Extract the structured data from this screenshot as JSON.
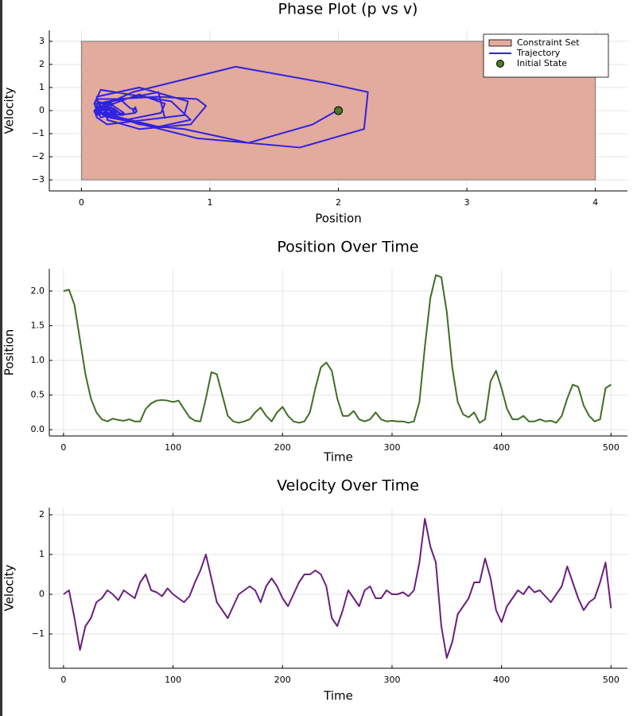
{
  "chart_data": [
    {
      "type": "line",
      "title": "Phase Plot (p vs v)",
      "xlabel": "Position",
      "ylabel": "Velocity",
      "xlim": [
        -0.25,
        4.25
      ],
      "ylim": [
        -3.48,
        3.48
      ],
      "xticks": [
        0,
        1,
        2,
        3,
        4
      ],
      "yticks": [
        {
          "value": -3,
          "label": "−3"
        },
        {
          "value": -2,
          "label": "−2"
        },
        {
          "value": -1,
          "label": "−1"
        },
        0,
        1,
        2,
        3
      ],
      "grid": true,
      "legend": "top-right",
      "series": [
        {
          "name": "Constraint Set",
          "kind": "rect",
          "color": "#e3aa9e",
          "x": [
            0,
            4
          ],
          "values": [
            -3,
            3
          ]
        },
        {
          "name": "Trajectory",
          "kind": "line",
          "color": "#2f22e0",
          "x": [
            2.0,
            2.02,
            1.8,
            1.3,
            0.8,
            0.45,
            0.25,
            0.15,
            0.12,
            0.16,
            0.14,
            0.13,
            0.15,
            0.12,
            0.12,
            0.3,
            0.38,
            0.42,
            0.43,
            0.42,
            0.4,
            0.42,
            0.3,
            0.18,
            0.13,
            0.12,
            0.45,
            0.83,
            0.8,
            0.5,
            0.2,
            0.12,
            0.1,
            0.12,
            0.15,
            0.25,
            0.32,
            0.2,
            0.12,
            0.25,
            0.33,
            0.2,
            0.12,
            0.1,
            0.12,
            0.25,
            0.6,
            0.9,
            0.97,
            0.85,
            0.45,
            0.2,
            0.2,
            0.27,
            0.15,
            0.12,
            0.15,
            0.25,
            0.15,
            0.12,
            0.13,
            0.12,
            0.12,
            0.1,
            0.12,
            0.4,
            1.2,
            1.9,
            2.23,
            2.2,
            1.7,
            0.9,
            0.4,
            0.22,
            0.18,
            0.25,
            0.1,
            0.15,
            0.7,
            0.85,
            0.6,
            0.3,
            0.15,
            0.15,
            0.2,
            0.12,
            0.12,
            0.15,
            0.12,
            0.13,
            0.1,
            0.2,
            0.45,
            0.65,
            0.62,
            0.35,
            0.2,
            0.12,
            0.15,
            0.6,
            0.65
          ],
          "values": [
            0,
            0.1,
            -0.6,
            -1.4,
            -0.8,
            -0.6,
            -0.2,
            -0.1,
            0.1,
            0,
            -0.15,
            0.1,
            0,
            -0.1,
            0.3,
            0.5,
            0.1,
            0.05,
            -0.05,
            0.15,
            0,
            -0.1,
            -0.2,
            -0.05,
            0.3,
            0.6,
            1.0,
            0.4,
            -0.2,
            -0.4,
            -0.6,
            -0.3,
            0,
            0.1,
            0.2,
            0.1,
            -0.2,
            0.2,
            0.4,
            0.2,
            -0.1,
            -0.3,
            0,
            0.3,
            0.5,
            0.5,
            0.6,
            0.5,
            0.2,
            -0.6,
            -0.8,
            -0.4,
            0.1,
            -0.1,
            -0.3,
            0.1,
            0.2,
            -0.1,
            -0.1,
            0.1,
            0,
            0,
            0.05,
            -0.05,
            0.1,
            0.8,
            1.9,
            1.2,
            0.8,
            -0.8,
            -1.6,
            -1.2,
            -0.5,
            -0.3,
            -0.1,
            0.3,
            0.3,
            0.9,
            0.4,
            -0.4,
            -0.7,
            -0.3,
            -0.1,
            0.1,
            0,
            0.2,
            0.05,
            0.1,
            -0.05,
            -0.2,
            0,
            0.2,
            0.7,
            0.3,
            -0.1,
            -0.4,
            -0.2,
            -0.1,
            0.3,
            0.8,
            -0.35
          ]
        },
        {
          "name": "Initial State",
          "kind": "scatter",
          "color": "#4a7a2a",
          "x": [
            2
          ],
          "values": [
            0
          ]
        }
      ]
    },
    {
      "type": "line",
      "title": "Position Over Time",
      "xlabel": "Time",
      "ylabel": "Position",
      "xlim": [
        -13,
        515
      ],
      "ylim": [
        -0.09,
        2.32
      ],
      "xticks": [
        0,
        100,
        200,
        300,
        400,
        500
      ],
      "yticks": [
        {
          "value": 0,
          "label": "0.0"
        },
        {
          "value": 0.5,
          "label": "0.5"
        },
        {
          "value": 1,
          "label": "1.0"
        },
        {
          "value": 1.5,
          "label": "1.5"
        },
        {
          "value": 2,
          "label": "2.0"
        }
      ],
      "grid": true,
      "x": [
        0,
        5,
        10,
        15,
        20,
        25,
        30,
        35,
        40,
        45,
        50,
        55,
        60,
        65,
        70,
        75,
        80,
        85,
        90,
        95,
        100,
        105,
        110,
        115,
        120,
        125,
        130,
        135,
        140,
        145,
        150,
        155,
        160,
        165,
        170,
        175,
        180,
        185,
        190,
        195,
        200,
        205,
        210,
        215,
        220,
        225,
        230,
        235,
        240,
        245,
        250,
        255,
        260,
        265,
        270,
        275,
        280,
        285,
        290,
        295,
        300,
        305,
        310,
        315,
        320,
        325,
        330,
        335,
        340,
        345,
        350,
        355,
        360,
        365,
        370,
        375,
        380,
        385,
        390,
        395,
        400,
        405,
        410,
        415,
        420,
        425,
        430,
        435,
        440,
        445,
        450,
        455,
        460,
        465,
        470,
        475,
        480,
        485,
        490,
        495,
        500
      ],
      "series": [
        {
          "kind": "line",
          "color": "#3f6e23",
          "values": [
            2.0,
            2.02,
            1.8,
            1.3,
            0.8,
            0.45,
            0.25,
            0.15,
            0.12,
            0.16,
            0.14,
            0.13,
            0.15,
            0.12,
            0.12,
            0.3,
            0.38,
            0.42,
            0.43,
            0.42,
            0.4,
            0.42,
            0.3,
            0.18,
            0.13,
            0.12,
            0.45,
            0.83,
            0.8,
            0.5,
            0.2,
            0.12,
            0.1,
            0.12,
            0.15,
            0.25,
            0.32,
            0.2,
            0.12,
            0.25,
            0.33,
            0.2,
            0.12,
            0.1,
            0.12,
            0.25,
            0.6,
            0.9,
            0.97,
            0.85,
            0.45,
            0.2,
            0.2,
            0.27,
            0.15,
            0.12,
            0.15,
            0.25,
            0.15,
            0.12,
            0.13,
            0.12,
            0.12,
            0.1,
            0.12,
            0.4,
            1.2,
            1.9,
            2.23,
            2.2,
            1.7,
            0.9,
            0.4,
            0.22,
            0.18,
            0.25,
            0.1,
            0.15,
            0.7,
            0.85,
            0.6,
            0.3,
            0.15,
            0.15,
            0.2,
            0.12,
            0.12,
            0.15,
            0.12,
            0.13,
            0.1,
            0.2,
            0.45,
            0.65,
            0.62,
            0.35,
            0.2,
            0.12,
            0.15,
            0.6,
            0.65
          ]
        }
      ]
    },
    {
      "type": "line",
      "title": "Velocity Over Time",
      "xlabel": "Time",
      "ylabel": "Velocity",
      "xlim": [
        -13,
        515
      ],
      "ylim": [
        -1.86,
        2.18
      ],
      "xticks": [
        0,
        100,
        200,
        300,
        400,
        500
      ],
      "yticks": [
        {
          "value": -1,
          "label": "−1"
        },
        0,
        1,
        2
      ],
      "grid": true,
      "x": [
        0,
        5,
        10,
        15,
        20,
        25,
        30,
        35,
        40,
        45,
        50,
        55,
        60,
        65,
        70,
        75,
        80,
        85,
        90,
        95,
        100,
        105,
        110,
        115,
        120,
        125,
        130,
        135,
        140,
        145,
        150,
        155,
        160,
        165,
        170,
        175,
        180,
        185,
        190,
        195,
        200,
        205,
        210,
        215,
        220,
        225,
        230,
        235,
        240,
        245,
        250,
        255,
        260,
        265,
        270,
        275,
        280,
        285,
        290,
        295,
        300,
        305,
        310,
        315,
        320,
        325,
        330,
        335,
        340,
        345,
        350,
        355,
        360,
        365,
        370,
        375,
        380,
        385,
        390,
        395,
        400,
        405,
        410,
        415,
        420,
        425,
        430,
        435,
        440,
        445,
        450,
        455,
        460,
        465,
        470,
        475,
        480,
        485,
        490,
        495,
        500
      ],
      "series": [
        {
          "kind": "line",
          "color": "#6a1f7f",
          "values": [
            0,
            0.1,
            -0.6,
            -1.4,
            -0.8,
            -0.6,
            -0.2,
            -0.1,
            0.1,
            0,
            -0.15,
            0.1,
            0,
            -0.1,
            0.3,
            0.5,
            0.1,
            0.05,
            -0.05,
            0.15,
            0,
            -0.1,
            -0.2,
            -0.05,
            0.3,
            0.6,
            1.0,
            0.4,
            -0.2,
            -0.4,
            -0.6,
            -0.3,
            0,
            0.1,
            0.2,
            0.1,
            -0.2,
            0.2,
            0.4,
            0.2,
            -0.1,
            -0.3,
            0,
            0.3,
            0.5,
            0.5,
            0.6,
            0.5,
            0.2,
            -0.6,
            -0.8,
            -0.4,
            0.1,
            -0.1,
            -0.3,
            0.1,
            0.2,
            -0.1,
            -0.1,
            0.1,
            0,
            0,
            0.05,
            -0.05,
            0.1,
            0.8,
            1.9,
            1.2,
            0.8,
            -0.8,
            -1.6,
            -1.2,
            -0.5,
            -0.3,
            -0.1,
            0.3,
            0.3,
            0.9,
            0.4,
            -0.4,
            -0.7,
            -0.3,
            -0.1,
            0.1,
            0,
            0.2,
            0.05,
            0.1,
            -0.05,
            -0.2,
            0,
            0.2,
            0.7,
            0.3,
            -0.1,
            -0.4,
            -0.2,
            -0.1,
            0.3,
            0.8,
            -0.35
          ]
        }
      ]
    }
  ]
}
